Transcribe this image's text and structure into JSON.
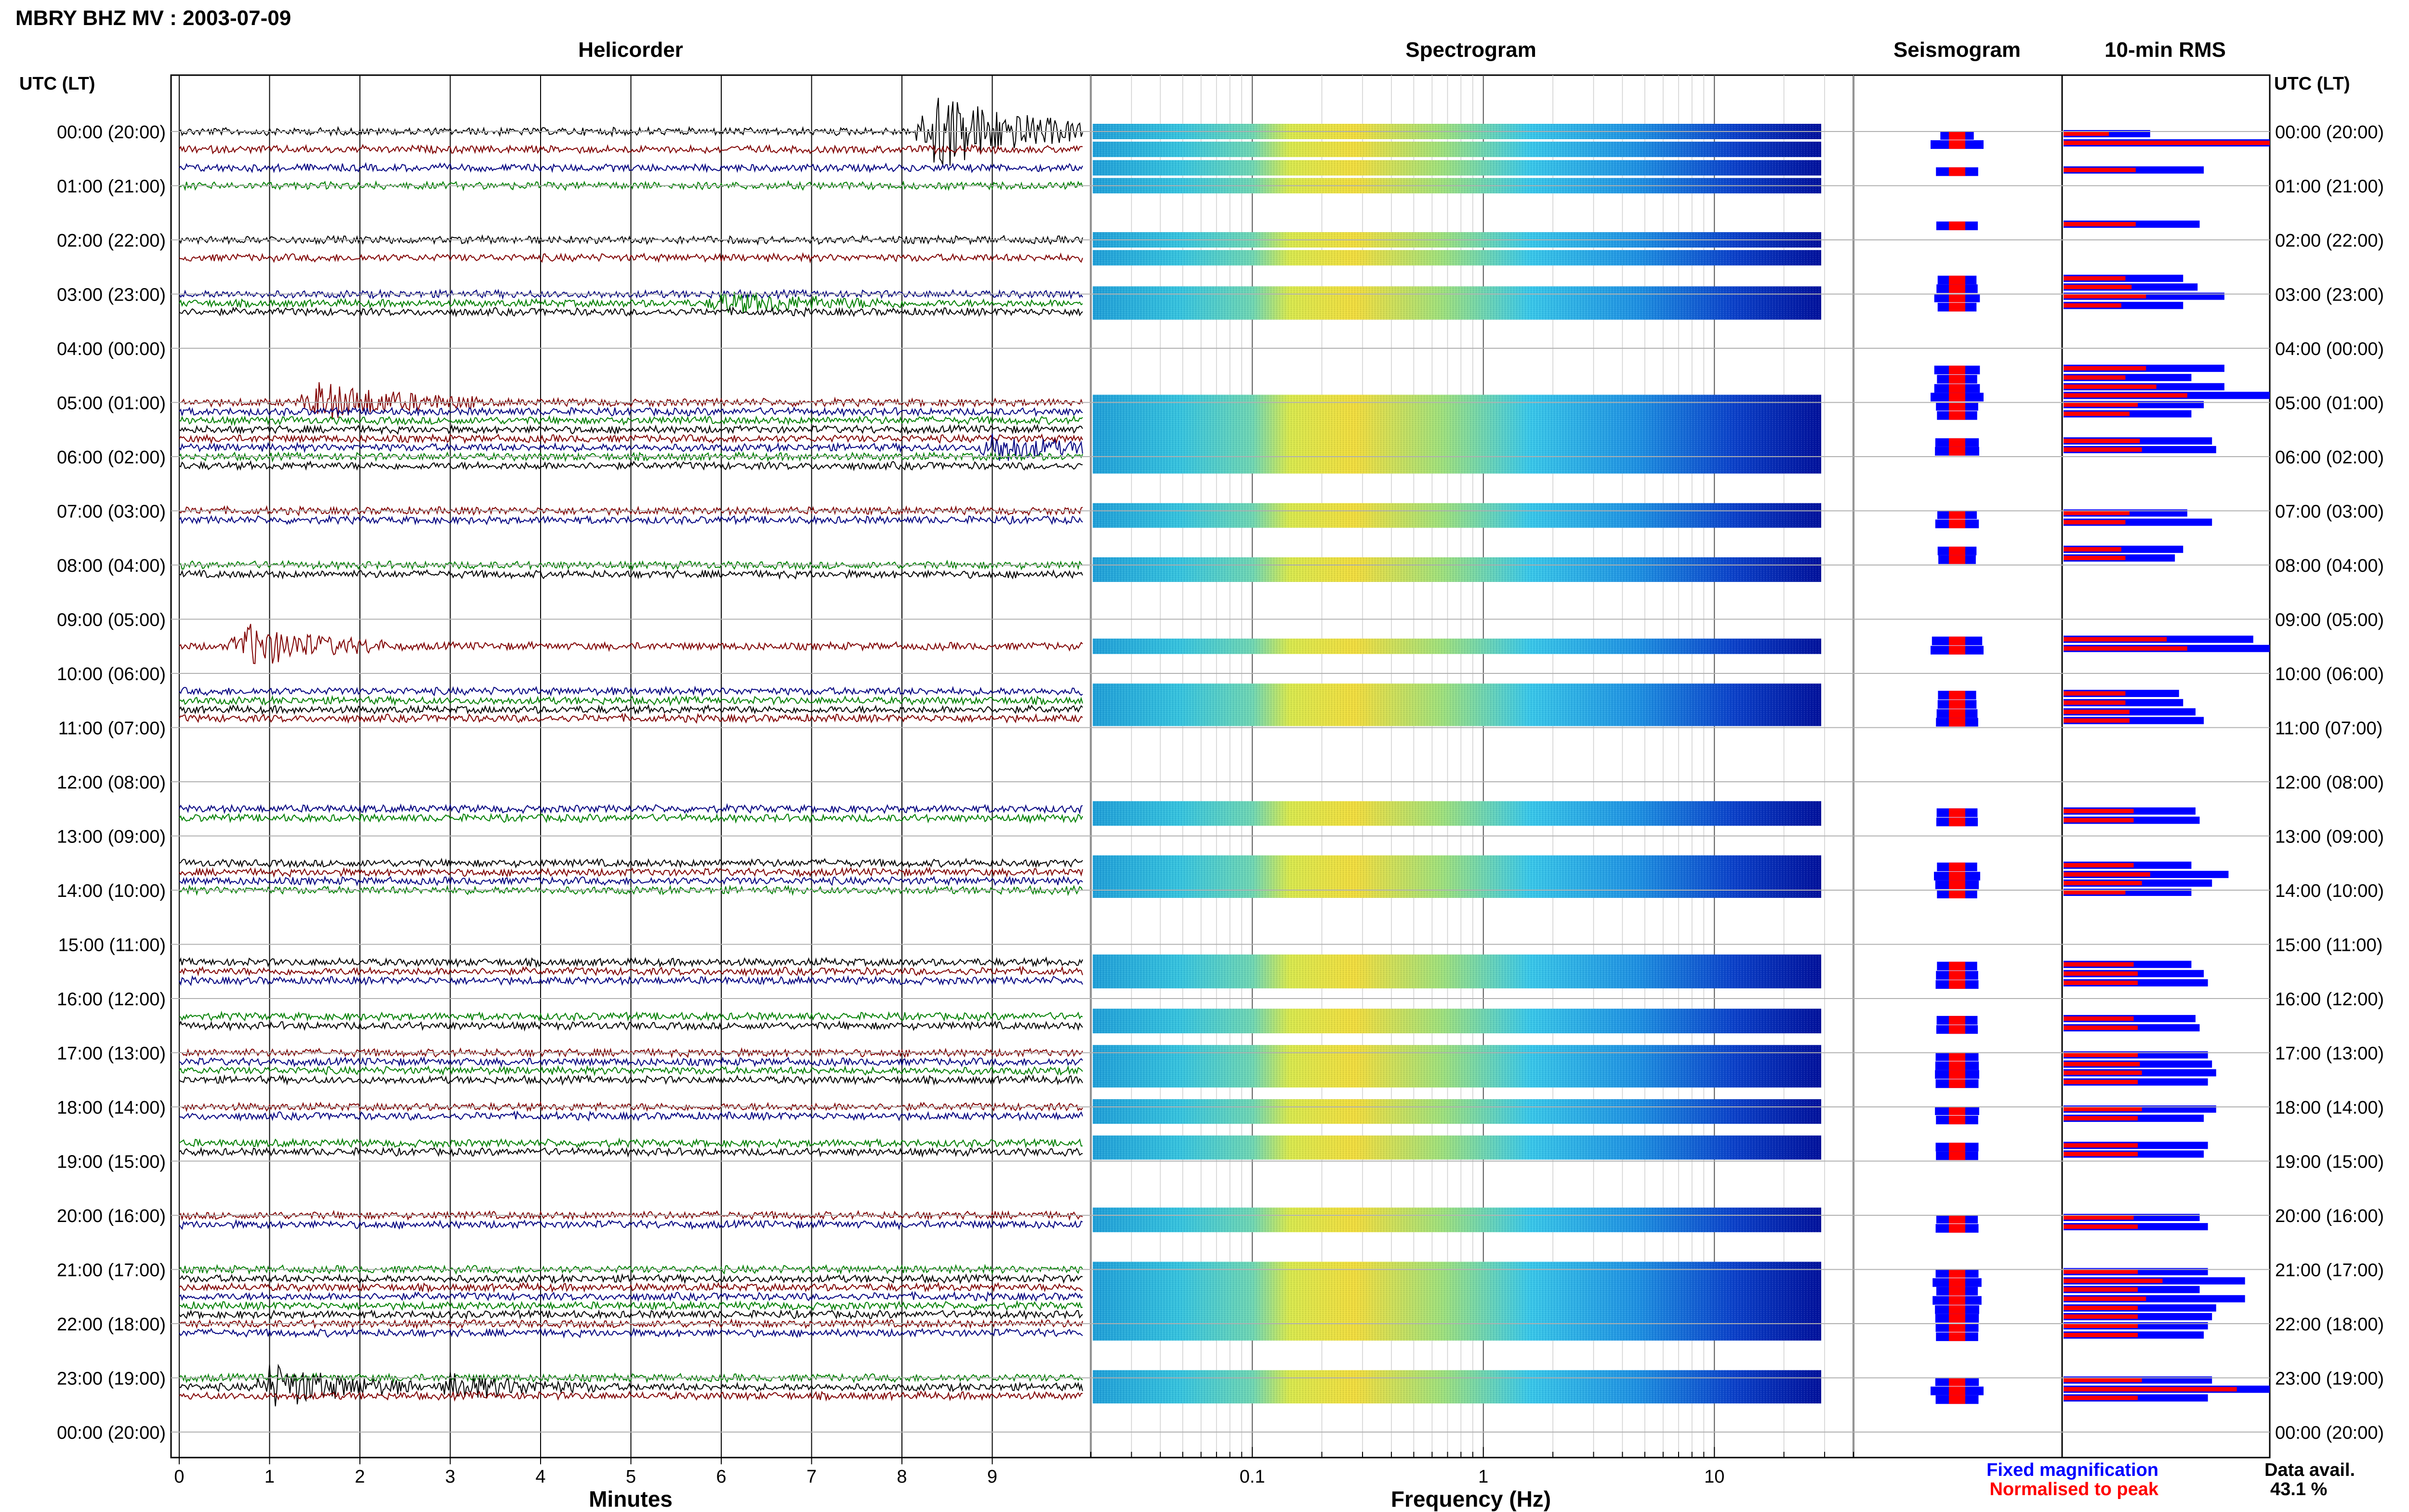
{
  "header": {
    "title": "MBRY BHZ MV : 2003-07-09"
  },
  "panels": {
    "helicorder": "Helicorder",
    "spectrogram": "Spectrogram",
    "seismogram": "Seismogram",
    "rms": "10-min RMS"
  },
  "time_axis": {
    "label": "UTC (LT)",
    "ticks": [
      "00:00 (20:00)",
      "01:00 (21:00)",
      "02:00 (22:00)",
      "03:00 (23:00)",
      "04:00 (00:00)",
      "05:00 (01:00)",
      "06:00 (02:00)",
      "07:00 (03:00)",
      "08:00 (04:00)",
      "09:00 (05:00)",
      "10:00 (06:00)",
      "11:00 (07:00)",
      "12:00 (08:00)",
      "13:00 (09:00)",
      "14:00 (10:00)",
      "15:00 (11:00)",
      "16:00 (12:00)",
      "17:00 (13:00)",
      "18:00 (14:00)",
      "19:00 (15:00)",
      "20:00 (16:00)",
      "21:00 (17:00)",
      "22:00 (18:00)",
      "23:00 (19:00)",
      "00:00 (20:00)"
    ]
  },
  "legend": {
    "fixed": "Fixed magnification",
    "normalised": "Normalised to peak",
    "fixed_color": "#0000ff",
    "normalised_color": "#ff0000"
  },
  "data_avail": {
    "label": "Data avail.",
    "value": "43.1 %"
  },
  "chart_data": [
    {
      "type": "line",
      "panel": "Helicorder",
      "xlabel": "Minutes",
      "x_ticks": [
        "0",
        "1",
        "2",
        "3",
        "4",
        "5",
        "6",
        "7",
        "8",
        "9"
      ],
      "xlim": [
        0,
        10
      ],
      "trace_colors": [
        "#000000",
        "#800000",
        "#000080",
        "#008000"
      ],
      "segment_hours": [
        0,
        0.33,
        0.67,
        1.0,
        2.0,
        2.33,
        3.0,
        3.17,
        3.33,
        5.0,
        5.17,
        5.33,
        5.5,
        5.67,
        5.83,
        6.0,
        6.17,
        7.0,
        7.17,
        8.0,
        8.17,
        9.5,
        10.33,
        10.5,
        10.67,
        10.83,
        12.5,
        12.67,
        13.5,
        13.67,
        13.83,
        14.0,
        15.33,
        15.5,
        15.67,
        16.33,
        16.5,
        17.0,
        17.17,
        17.33,
        17.5,
        18.0,
        18.17,
        18.67,
        18.83,
        20.0,
        20.17,
        21.0,
        21.17,
        21.33,
        21.5,
        21.67,
        21.83,
        22.0,
        22.17,
        23.0,
        23.17,
        23.33
      ]
    },
    {
      "type": "heatmap",
      "panel": "Spectrogram",
      "xlabel": "Frequency (Hz)",
      "x_ticks": [
        "0.1",
        "1",
        "10"
      ],
      "xscale": "log",
      "xlim": [
        0.02,
        40
      ],
      "colormap": "jet"
    },
    {
      "type": "area",
      "panel": "Seismogram",
      "series_colors": [
        "#0000ff",
        "#ff0000"
      ]
    },
    {
      "type": "bar",
      "panel": "10-min RMS",
      "series": [
        {
          "name": "Fixed magnification",
          "color": "#0000ff"
        },
        {
          "name": "Normalised to peak",
          "color": "#ff0000"
        }
      ],
      "rows": [
        {
          "hour": 0.0,
          "fixed": 0.42,
          "norm": 0.22
        },
        {
          "hour": 0.17,
          "fixed": 1.0,
          "norm": 1.0
        },
        {
          "hour": 0.67,
          "fixed": 0.68,
          "norm": 0.35
        },
        {
          "hour": 1.67,
          "fixed": 0.66,
          "norm": 0.35
        },
        {
          "hour": 2.67,
          "fixed": 0.58,
          "norm": 0.3
        },
        {
          "hour": 2.83,
          "fixed": 0.65,
          "norm": 0.33
        },
        {
          "hour": 3.0,
          "fixed": 0.78,
          "norm": 0.4
        },
        {
          "hour": 3.17,
          "fixed": 0.58,
          "norm": 0.28
        },
        {
          "hour": 4.33,
          "fixed": 0.78,
          "norm": 0.4
        },
        {
          "hour": 4.5,
          "fixed": 0.62,
          "norm": 0.3
        },
        {
          "hour": 4.67,
          "fixed": 0.78,
          "norm": 0.45
        },
        {
          "hour": 4.83,
          "fixed": 1.0,
          "norm": 0.6
        },
        {
          "hour": 5.0,
          "fixed": 0.68,
          "norm": 0.36
        },
        {
          "hour": 5.17,
          "fixed": 0.62,
          "norm": 0.32
        },
        {
          "hour": 5.67,
          "fixed": 0.72,
          "norm": 0.37
        },
        {
          "hour": 5.83,
          "fixed": 0.74,
          "norm": 0.38
        },
        {
          "hour": 7.0,
          "fixed": 0.6,
          "norm": 0.32
        },
        {
          "hour": 7.17,
          "fixed": 0.72,
          "norm": 0.3
        },
        {
          "hour": 7.67,
          "fixed": 0.58,
          "norm": 0.28
        },
        {
          "hour": 7.83,
          "fixed": 0.54,
          "norm": 0.3
        },
        {
          "hour": 9.33,
          "fixed": 0.92,
          "norm": 0.5
        },
        {
          "hour": 9.5,
          "fixed": 1.0,
          "norm": 0.6
        },
        {
          "hour": 10.33,
          "fixed": 0.56,
          "norm": 0.3
        },
        {
          "hour": 10.5,
          "fixed": 0.58,
          "norm": 0.3
        },
        {
          "hour": 10.67,
          "fixed": 0.64,
          "norm": 0.32
        },
        {
          "hour": 10.83,
          "fixed": 0.68,
          "norm": 0.32
        },
        {
          "hour": 12.5,
          "fixed": 0.64,
          "norm": 0.34
        },
        {
          "hour": 12.67,
          "fixed": 0.66,
          "norm": 0.34
        },
        {
          "hour": 13.5,
          "fixed": 0.62,
          "norm": 0.34
        },
        {
          "hour": 13.67,
          "fixed": 0.8,
          "norm": 0.42
        },
        {
          "hour": 13.83,
          "fixed": 0.72,
          "norm": 0.38
        },
        {
          "hour": 14.0,
          "fixed": 0.62,
          "norm": 0.3
        },
        {
          "hour": 15.33,
          "fixed": 0.62,
          "norm": 0.34
        },
        {
          "hour": 15.5,
          "fixed": 0.68,
          "norm": 0.36
        },
        {
          "hour": 15.67,
          "fixed": 0.7,
          "norm": 0.36
        },
        {
          "hour": 16.33,
          "fixed": 0.64,
          "norm": 0.34
        },
        {
          "hour": 16.5,
          "fixed": 0.66,
          "norm": 0.36
        },
        {
          "hour": 17.0,
          "fixed": 0.7,
          "norm": 0.36
        },
        {
          "hour": 17.17,
          "fixed": 0.72,
          "norm": 0.37
        },
        {
          "hour": 17.33,
          "fixed": 0.74,
          "norm": 0.38
        },
        {
          "hour": 17.5,
          "fixed": 0.7,
          "norm": 0.36
        },
        {
          "hour": 18.0,
          "fixed": 0.74,
          "norm": 0.38
        },
        {
          "hour": 18.17,
          "fixed": 0.68,
          "norm": 0.36
        },
        {
          "hour": 18.67,
          "fixed": 0.7,
          "norm": 0.36
        },
        {
          "hour": 18.83,
          "fixed": 0.68,
          "norm": 0.36
        },
        {
          "hour": 20.0,
          "fixed": 0.66,
          "norm": 0.34
        },
        {
          "hour": 20.17,
          "fixed": 0.7,
          "norm": 0.36
        },
        {
          "hour": 21.0,
          "fixed": 0.7,
          "norm": 0.36
        },
        {
          "hour": 21.17,
          "fixed": 0.88,
          "norm": 0.48
        },
        {
          "hour": 21.33,
          "fixed": 0.66,
          "norm": 0.36
        },
        {
          "hour": 21.5,
          "fixed": 0.88,
          "norm": 0.4
        },
        {
          "hour": 21.67,
          "fixed": 0.74,
          "norm": 0.36
        },
        {
          "hour": 21.83,
          "fixed": 0.72,
          "norm": 0.36
        },
        {
          "hour": 22.0,
          "fixed": 0.7,
          "norm": 0.36
        },
        {
          "hour": 22.17,
          "fixed": 0.68,
          "norm": 0.36
        },
        {
          "hour": 23.0,
          "fixed": 0.72,
          "norm": 0.38
        },
        {
          "hour": 23.17,
          "fixed": 1.0,
          "norm": 0.84
        },
        {
          "hour": 23.33,
          "fixed": 0.7,
          "norm": 0.36
        }
      ]
    }
  ]
}
